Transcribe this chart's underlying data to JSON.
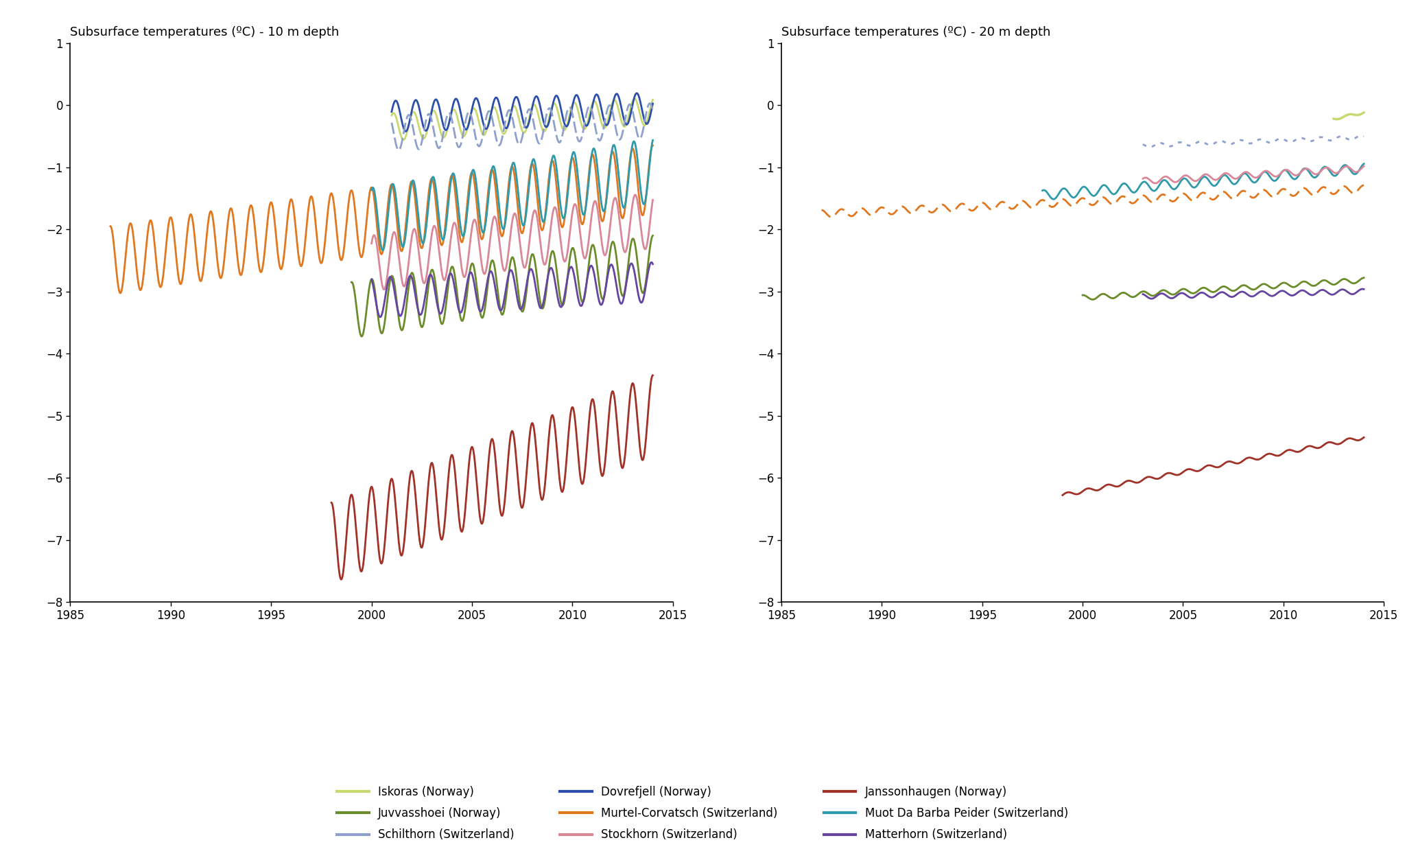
{
  "title_left": "Subsurface temperatures (ºC) - 10 m depth",
  "title_right": "Subsurface temperatures (ºC) - 20 m depth",
  "xlim": [
    1985,
    2015
  ],
  "ylim": [
    -8,
    1
  ],
  "yticks": [
    1,
    0,
    -1,
    -2,
    -3,
    -4,
    -5,
    -6,
    -7,
    -8
  ],
  "xticks": [
    1985,
    1990,
    1995,
    2000,
    2005,
    2010,
    2015
  ],
  "colors": {
    "Iskoras": "#c8d96f",
    "Dovrefjell": "#2b4faa",
    "Janssonhaugen": "#a03228",
    "Juvvasshoei": "#6b8c2a",
    "Murtel_Corvatsch": "#e07820",
    "Muot_Da_Barba_Peider": "#2e9aaa",
    "Schilthorn": "#8fa0cc",
    "Stockhorn": "#d88898",
    "Matterhorn": "#6645a0"
  },
  "legend_labels_col1": [
    "Iskoras (Norway)",
    "Dovrefjell (Norway)",
    "Janssonhaugen (Norway)"
  ],
  "legend_labels_col2": [
    "Juvvasshoei (Norway)",
    "Murtel-Corvatsch (Switzerland)",
    "Muot Da Barba Peider (Switzerland)"
  ],
  "legend_labels_col3": [
    "Schilthorn (Switzerland)",
    "Stockhorn (Switzerland)",
    "Matterhorn (Switzerland)"
  ]
}
